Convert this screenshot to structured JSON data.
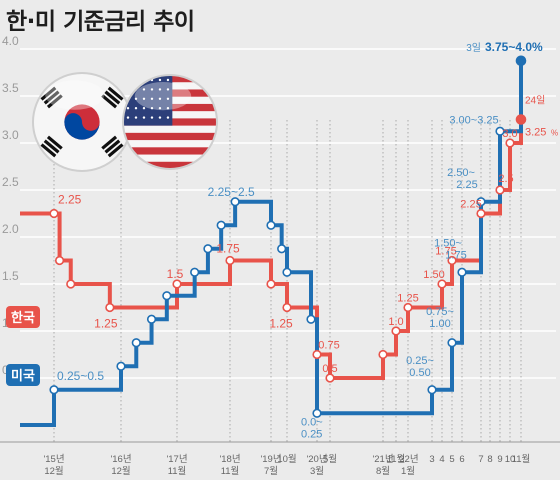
{
  "chart_data": {
    "type": "line",
    "title": "한·미 기준금리 추이",
    "y_ticks": [
      "4.0",
      "3.5",
      "3.0",
      "2.5",
      "2.0",
      "1.5",
      "1.0",
      "0.5"
    ],
    "ylim": [
      0,
      4
    ],
    "grid": true,
    "legend_placement": "left",
    "colors": {
      "korea": "#e8534a",
      "usa": "#1f6fb3",
      "usa_label": "#4a8fc4"
    },
    "x_tick_labels": [
      {
        "top": "'15년",
        "bottom": "12월",
        "t": 1
      },
      {
        "top": "'16년",
        "bottom": "12월",
        "t": 13
      },
      {
        "top": "'17년",
        "bottom": "11월",
        "t": 24
      },
      {
        "top": "'18년",
        "bottom": "11월",
        "t": 36
      },
      {
        "top": "'19년",
        "bottom": "7월",
        "t": 44
      },
      {
        "top": "10월",
        "bottom": "",
        "t": 47
      },
      {
        "top": "'20년",
        "bottom": "3월",
        "t": 52
      },
      {
        "top": "5월",
        "bottom": "",
        "t": 54
      },
      {
        "top": "'21년",
        "bottom": "8월",
        "t": 69
      },
      {
        "top": "11월",
        "bottom": "",
        "t": 72
      },
      {
        "top": "'22년",
        "bottom": "1월",
        "t": 74
      },
      {
        "top": "3",
        "bottom": "",
        "t": 76
      },
      {
        "top": "4",
        "bottom": "",
        "t": 77
      },
      {
        "top": "5",
        "bottom": "",
        "t": 78
      },
      {
        "top": "6",
        "bottom": "",
        "t": 79
      },
      {
        "top": "7",
        "bottom": "",
        "t": 80
      },
      {
        "top": "8",
        "bottom": "",
        "t": 81
      },
      {
        "top": "9",
        "bottom": "",
        "t": 82
      },
      {
        "top": "10",
        "bottom": "",
        "t": 83
      },
      {
        "top": "11월",
        "bottom": "",
        "t": 84
      }
    ],
    "series": [
      {
        "name": "한국",
        "key": "korea",
        "points": [
          {
            "t": 0,
            "v": 2.25
          },
          {
            "t": 1,
            "v": 2.25
          },
          {
            "t": 2,
            "v": 1.75
          },
          {
            "t": 4,
            "v": 1.5
          },
          {
            "t": 11,
            "v": 1.25
          },
          {
            "t": 24,
            "v": 1.5
          },
          {
            "t": 36,
            "v": 1.75
          },
          {
            "t": 44,
            "v": 1.5
          },
          {
            "t": 47,
            "v": 1.25
          },
          {
            "t": 52,
            "v": 0.75
          },
          {
            "t": 54,
            "v": 0.5
          },
          {
            "t": 69,
            "v": 0.75
          },
          {
            "t": 72,
            "v": 1.0
          },
          {
            "t": 74,
            "v": 1.25
          },
          {
            "t": 77,
            "v": 1.5
          },
          {
            "t": 78,
            "v": 1.75
          },
          {
            "t": 80,
            "v": 2.25
          },
          {
            "t": 82,
            "v": 2.5
          },
          {
            "t": 83,
            "v": 3.0
          },
          {
            "t": 84,
            "v": 3.25
          }
        ],
        "labels": [
          {
            "text": "2.25",
            "t": 1,
            "v": 2.25
          },
          {
            "text": "1.25",
            "t": 11,
            "v": 1.25
          },
          {
            "text": "1.5",
            "t": 24,
            "v": 1.5
          },
          {
            "text": "1.75",
            "t": 36,
            "v": 1.75
          },
          {
            "text": "1.25",
            "t": 47,
            "v": 1.25
          },
          {
            "text": "0.75",
            "t": 52,
            "v": 0.75
          },
          {
            "text": "0.5",
            "t": 54,
            "v": 0.5
          },
          {
            "text": "1.0",
            "t": 72,
            "v": 1.0
          },
          {
            "text": "1.25",
            "t": 74,
            "v": 1.25
          },
          {
            "text": "1.50",
            "t": 77,
            "v": 1.5
          },
          {
            "text": "1.75",
            "t": 78,
            "v": 1.75
          },
          {
            "text": "2.25",
            "t": 80,
            "v": 2.25
          },
          {
            "text": "2.5",
            "t": 82,
            "v": 2.5
          },
          {
            "text": "3.0",
            "t": 83,
            "v": 3.0
          },
          {
            "text": "24일",
            "t": 84,
            "v": 3.25
          },
          {
            "text": "3.25",
            "t": 84,
            "v": 3.25
          },
          {
            "text": "%",
            "t": 84,
            "v": 3.25
          }
        ]
      },
      {
        "name": "미국",
        "key": "usa",
        "points": [
          {
            "t": 0,
            "v": 0.0
          },
          {
            "t": 1,
            "v": 0.0
          },
          {
            "t": 1,
            "v": 0.375
          },
          {
            "t": 13,
            "v": 0.625
          },
          {
            "t": 16,
            "v": 0.875
          },
          {
            "t": 19,
            "v": 1.125
          },
          {
            "t": 22,
            "v": 1.375
          },
          {
            "t": 28,
            "v": 1.625
          },
          {
            "t": 31,
            "v": 1.875
          },
          {
            "t": 34,
            "v": 2.125
          },
          {
            "t": 37,
            "v": 2.375
          },
          {
            "t": 44,
            "v": 2.125
          },
          {
            "t": 46,
            "v": 1.875
          },
          {
            "t": 47,
            "v": 1.625
          },
          {
            "t": 51,
            "v": 1.125
          },
          {
            "t": 52,
            "v": 0.125
          },
          {
            "t": 76,
            "v": 0.375
          },
          {
            "t": 78,
            "v": 0.875
          },
          {
            "t": 79,
            "v": 1.625
          },
          {
            "t": 80,
            "v": 2.375
          },
          {
            "t": 82,
            "v": 3.125
          },
          {
            "t": 84,
            "v": 3.875
          }
        ],
        "labels": [
          {
            "text": "0.25~0.5",
            "t": 1,
            "v": 0.375
          },
          {
            "text": "2.25~2.5",
            "t": 37,
            "v": 2.375
          },
          {
            "text": "0.0~",
            "t": 52,
            "v": 0.125
          },
          {
            "text": "0.25",
            "t": 52,
            "v": 0.125
          },
          {
            "text": "0.25~",
            "t": 76,
            "v": 0.375
          },
          {
            "text": "0.50",
            "t": 76,
            "v": 0.375
          },
          {
            "text": "0.75~",
            "t": 78,
            "v": 0.875
          },
          {
            "text": "1.00",
            "t": 78,
            "v": 0.875
          },
          {
            "text": "1.50~",
            "t": 79,
            "v": 1.625
          },
          {
            "text": "1.75",
            "t": 79,
            "v": 1.625
          },
          {
            "text": "2.50~",
            "t": 80,
            "v": 2.375
          },
          {
            "text": "2.25",
            "t": 80,
            "v": 2.375
          },
          {
            "text": "3.00~3.25",
            "t": 82,
            "v": 3.125
          },
          {
            "text": "3일",
            "t": 84,
            "v": 3.875
          },
          {
            "text": "3.75~4.0%",
            "t": 84,
            "v": 3.875
          }
        ]
      }
    ]
  }
}
